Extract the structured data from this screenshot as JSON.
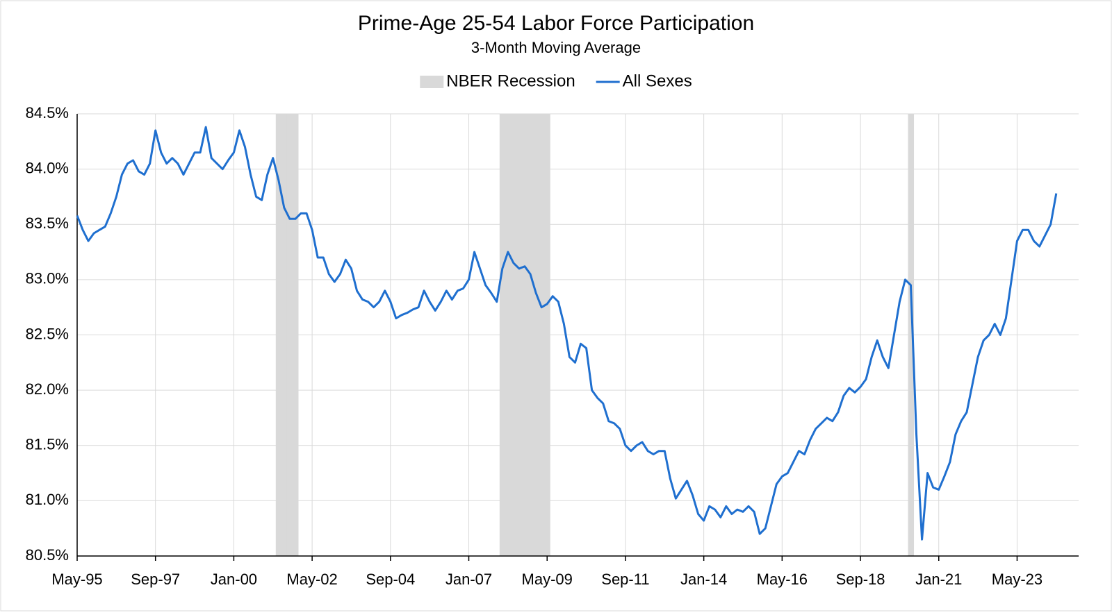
{
  "chart_data": {
    "type": "line",
    "title": "Prime-Age 25-54 Labor Force Participation",
    "subtitle": "3-Month Moving Average",
    "categories": [
      "May-95",
      null,
      null,
      null,
      null,
      null,
      null,
      null,
      null,
      null,
      null,
      null,
      null,
      null,
      "Sep-97",
      null,
      null,
      null,
      null,
      null,
      null,
      null,
      null,
      null,
      null,
      null,
      null,
      null,
      "Jan-00",
      null,
      null,
      null,
      null,
      null,
      null,
      null,
      null,
      null,
      null,
      null,
      null,
      null,
      "May-02",
      null,
      null,
      null,
      null,
      null,
      null,
      null,
      null,
      null,
      null,
      null,
      null,
      null,
      "Sep-04",
      null,
      null,
      null,
      null,
      null,
      null,
      null,
      null,
      null,
      null,
      null,
      null,
      null,
      "Jan-07",
      null,
      null,
      null,
      null,
      null,
      null,
      null,
      null,
      null,
      null,
      null,
      null,
      null,
      "May-09",
      null,
      null,
      null,
      null,
      null,
      null,
      null,
      null,
      null,
      null,
      null,
      null,
      null,
      "Sep-11",
      null,
      null,
      null,
      null,
      null,
      null,
      null,
      null,
      null,
      null,
      null,
      null,
      null,
      "Jan-14",
      null,
      null,
      null,
      null,
      null,
      null,
      null,
      null,
      null,
      null,
      null,
      null,
      null,
      "May-16",
      null,
      null,
      null,
      null,
      null,
      null,
      null,
      null,
      null,
      null,
      null,
      null,
      null,
      "Sep-18",
      null,
      null,
      null,
      null,
      null,
      null,
      null,
      null,
      null,
      null,
      null,
      null,
      null,
      "Jan-21",
      null,
      null,
      null,
      null,
      null,
      null,
      null,
      null,
      null,
      null,
      null,
      null,
      null,
      "May-23",
      null,
      null,
      null,
      null,
      null,
      null,
      null
    ],
    "series": [
      {
        "name": "NBER Recession",
        "type": "bar",
        "color": "#d9d9d9",
        "values": [
          null,
          null,
          null,
          null,
          null,
          null,
          null,
          null,
          null,
          null,
          null,
          null,
          null,
          null,
          null,
          null,
          null,
          null,
          null,
          null,
          null,
          null,
          null,
          null,
          null,
          null,
          null,
          null,
          null,
          null,
          null,
          null,
          null,
          null,
          null,
          null,
          84.5,
          84.5,
          84.5,
          84.5,
          null,
          null,
          null,
          null,
          null,
          null,
          null,
          null,
          null,
          null,
          null,
          null,
          null,
          null,
          null,
          null,
          null,
          null,
          null,
          null,
          null,
          null,
          null,
          null,
          null,
          null,
          null,
          null,
          null,
          null,
          null,
          null,
          null,
          null,
          null,
          null,
          84.5,
          84.5,
          84.5,
          84.5,
          84.5,
          84.5,
          84.5,
          84.5,
          84.5,
          null,
          null,
          null,
          null,
          null,
          null,
          null,
          null,
          null,
          null,
          null,
          null,
          null,
          null,
          null,
          null,
          null,
          null,
          null,
          null,
          null,
          null,
          null,
          null,
          null,
          null,
          null,
          null,
          null,
          null,
          null,
          null,
          null,
          null,
          null,
          null,
          null,
          null,
          null,
          null,
          null,
          null,
          null,
          null,
          null,
          null,
          null,
          null,
          null,
          null,
          null,
          null,
          null,
          null,
          null,
          null,
          null,
          null,
          null,
          null,
          null,
          null,
          null,
          null,
          84.5,
          null,
          null,
          null,
          null,
          null,
          null,
          null,
          null,
          null,
          null,
          null,
          null,
          null,
          null,
          null,
          null,
          null,
          null,
          null,
          null,
          null,
          null,
          null,
          null,
          null,
          null
        ]
      },
      {
        "name": "All Sexes",
        "type": "line",
        "color": "#1f6fcf",
        "values": [
          83.58,
          83.45,
          83.35,
          83.42,
          83.45,
          83.48,
          83.6,
          83.75,
          83.95,
          84.05,
          84.08,
          83.98,
          83.95,
          84.05,
          84.35,
          84.15,
          84.05,
          84.1,
          84.05,
          83.95,
          84.05,
          84.15,
          84.15,
          84.38,
          84.1,
          84.05,
          84.0,
          84.08,
          84.15,
          84.35,
          84.2,
          83.95,
          83.75,
          83.72,
          83.95,
          84.1,
          83.9,
          83.65,
          83.55,
          83.55,
          83.6,
          83.6,
          83.45,
          83.2,
          83.2,
          83.05,
          82.98,
          83.05,
          83.18,
          83.1,
          82.9,
          82.82,
          82.8,
          82.75,
          82.8,
          82.9,
          82.8,
          82.65,
          82.68,
          82.7,
          82.73,
          82.75,
          82.9,
          82.8,
          82.72,
          82.8,
          82.9,
          82.82,
          82.9,
          82.92,
          83.0,
          83.25,
          83.1,
          82.95,
          82.88,
          82.8,
          83.1,
          83.25,
          83.15,
          83.1,
          83.12,
          83.05,
          82.88,
          82.75,
          82.78,
          82.85,
          82.8,
          82.6,
          82.3,
          82.25,
          82.42,
          82.38,
          82.0,
          81.93,
          81.88,
          81.72,
          81.7,
          81.65,
          81.5,
          81.45,
          81.5,
          81.53,
          81.45,
          81.42,
          81.45,
          81.45,
          81.2,
          81.02,
          81.1,
          81.18,
          81.05,
          80.88,
          80.82,
          80.95,
          80.92,
          80.85,
          80.95,
          80.88,
          80.92,
          80.9,
          80.95,
          80.9,
          80.7,
          80.75,
          80.95,
          81.15,
          81.22,
          81.25,
          81.35,
          81.45,
          81.42,
          81.55,
          81.65,
          81.7,
          81.75,
          81.72,
          81.8,
          81.95,
          82.02,
          81.98,
          82.03,
          82.1,
          82.3,
          82.45,
          82.3,
          82.2,
          82.5,
          82.8,
          83.0,
          82.95,
          81.6,
          80.65,
          81.25,
          81.12,
          81.1,
          81.22,
          81.35,
          81.6,
          81.72,
          81.8,
          82.05,
          82.3,
          82.45,
          82.5,
          82.6,
          82.5,
          82.65,
          83.0,
          83.35,
          83.45,
          83.45,
          83.35,
          83.3,
          83.4,
          83.5,
          83.78
        ]
      }
    ],
    "ylim": [
      80.5,
      84.5
    ],
    "yticks": [
      {
        "value": 80.5,
        "label": "80.5%"
      },
      {
        "value": 81.0,
        "label": "81.0%"
      },
      {
        "value": 81.5,
        "label": "81.5%"
      },
      {
        "value": 82.0,
        "label": "82.0%"
      },
      {
        "value": 82.5,
        "label": "82.5%"
      },
      {
        "value": 83.0,
        "label": "83.0%"
      },
      {
        "value": 83.5,
        "label": "83.5%"
      },
      {
        "value": 84.0,
        "label": "84.0%"
      },
      {
        "value": 84.5,
        "label": "84.5%"
      }
    ],
    "grid": true,
    "legend": "top"
  }
}
